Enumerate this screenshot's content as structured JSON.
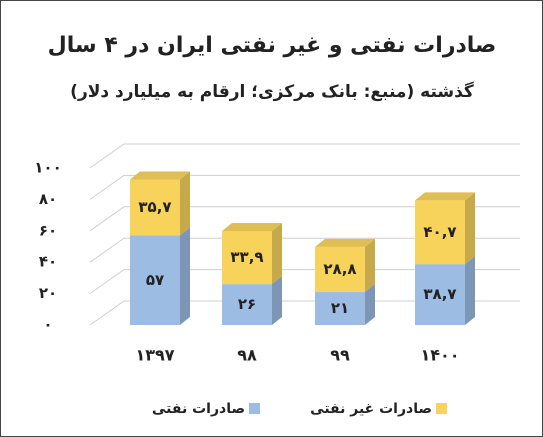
{
  "chart_data": {
    "type": "stacked-bar-3d",
    "title": "صادرات نفتی و غیر نفتی ایران در ۴ سال",
    "subtitle": "گذشته (منبع: بانک مرکزی؛ ارقام به میلیارد دلار)",
    "categories": [
      "۱۳۹۷",
      "۹۸",
      "۹۹",
      "۱۴۰۰"
    ],
    "series": [
      {
        "name": "صادرات نفتی",
        "color": "#9dbce4",
        "values": [
          57,
          26,
          21,
          38.7
        ],
        "value_labels": [
          "۵۷",
          "۲۶",
          "۲۱",
          "۳۸,۷"
        ]
      },
      {
        "name": "صادرات غیر نفتی",
        "color": "#f8d35c",
        "values": [
          35.7,
          33.9,
          28.8,
          40.7
        ],
        "value_labels": [
          "۳۵,۷",
          "۳۳,۹",
          "۲۸,۸",
          "۴۰,۷"
        ]
      }
    ],
    "ylim": [
      0,
      100
    ],
    "yticks": [
      {
        "value": 0,
        "label": "۰"
      },
      {
        "value": 20,
        "label": "۲۰"
      },
      {
        "value": 40,
        "label": "۴۰"
      },
      {
        "value": 60,
        "label": "۶۰"
      },
      {
        "value": 80,
        "label": "۸۰"
      },
      {
        "value": 100,
        "label": "۱۰۰"
      }
    ],
    "grid": true
  }
}
